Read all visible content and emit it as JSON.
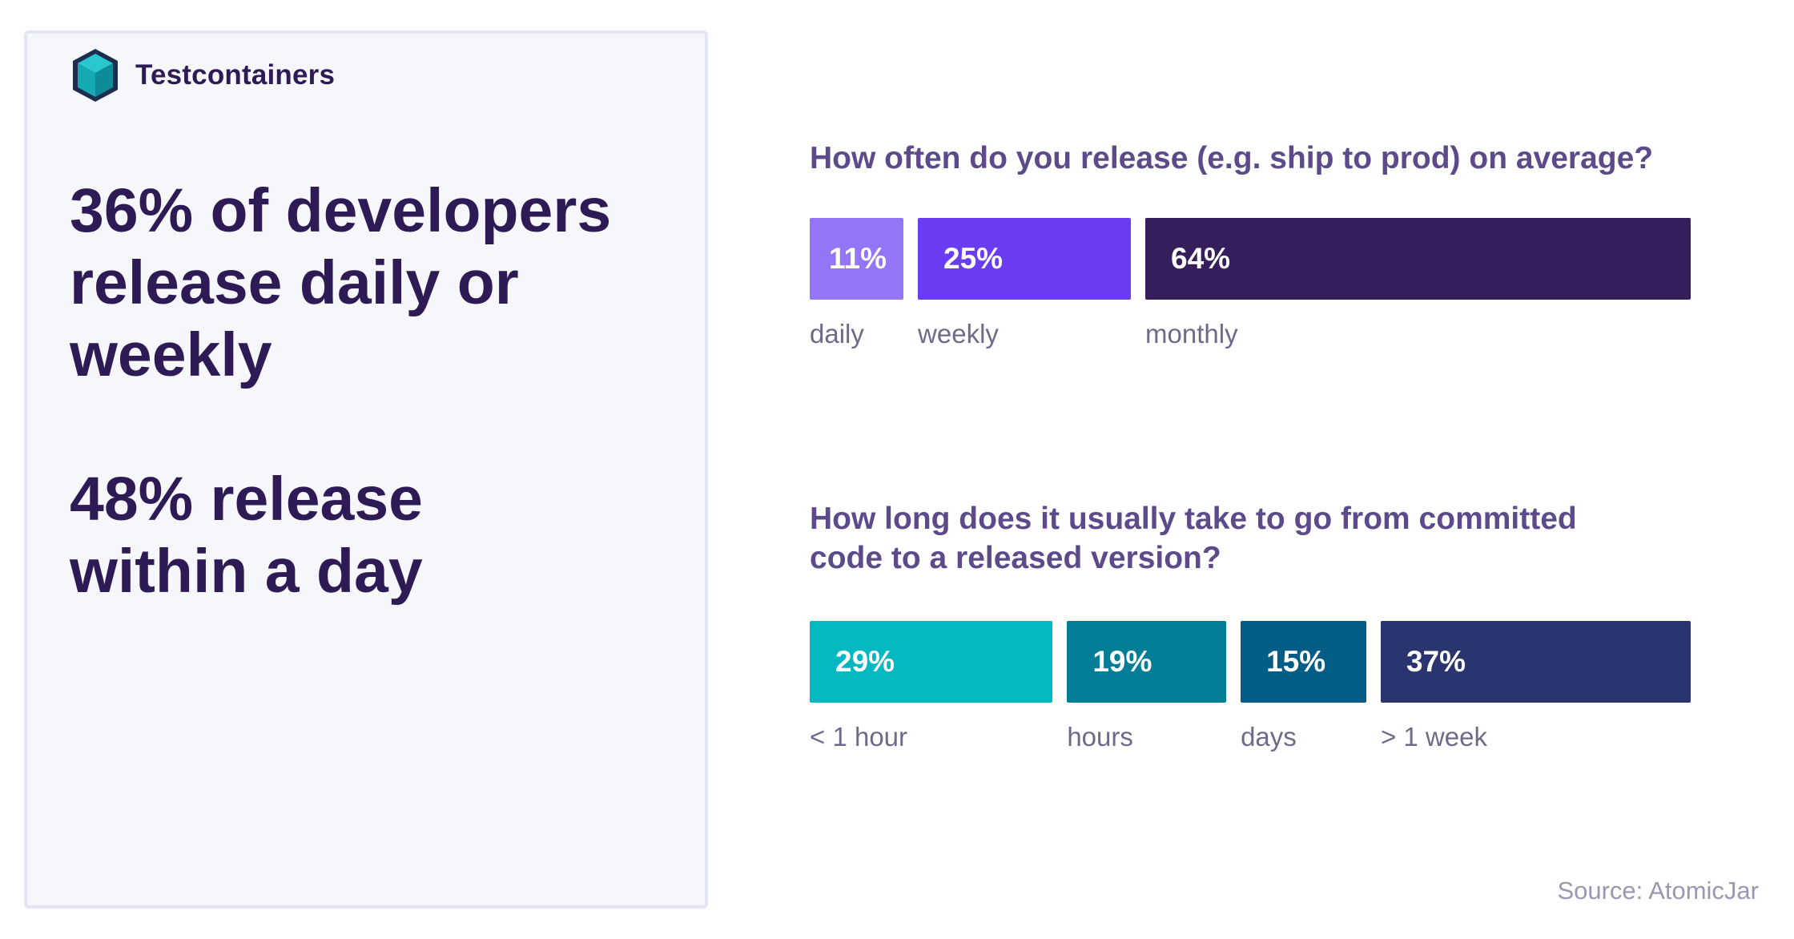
{
  "brand": {
    "name": "Testcontainers",
    "logo_icon": "cube-logo-icon"
  },
  "headline_1": {
    "line1": "36% of developers",
    "line2": "release daily or",
    "line3": "weekly"
  },
  "headline_2": {
    "line1": "48% release",
    "line2": "within a day"
  },
  "source": "Source: AtomicJar",
  "colors": {
    "daily": "#9475f5",
    "weekly": "#6a3cf2",
    "monthly": "#361e5c",
    "lt_1_hour": "#03b8c0",
    "hours": "#037e96",
    "days": "#045d87",
    "gt_1_week": "#2a346e"
  },
  "chart_data": [
    {
      "type": "bar",
      "orientation": "horizontal-stacked-100",
      "title": "How often do you release (e.g. ship to prod) on average?",
      "categories": [
        "daily",
        "weekly",
        "monthly"
      ],
      "values": [
        11,
        25,
        64
      ],
      "value_labels": [
        "11%",
        "25%",
        "64%"
      ],
      "unit": "%"
    },
    {
      "type": "bar",
      "orientation": "horizontal-stacked-100",
      "title_line1": "How long does it usually take to go from committed",
      "title_line2": "code to a released version?",
      "categories": [
        "< 1 hour",
        "hours",
        "days",
        "> 1 week"
      ],
      "values": [
        29,
        19,
        15,
        37
      ],
      "value_labels": [
        "29%",
        "19%",
        "15%",
        "37%"
      ],
      "unit": "%"
    }
  ]
}
